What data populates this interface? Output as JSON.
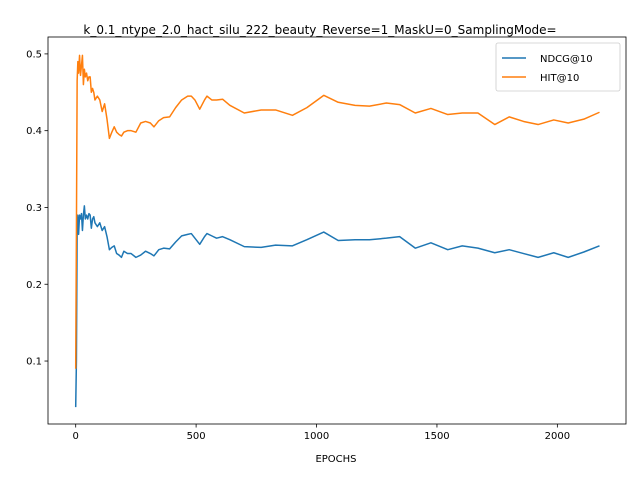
{
  "chart_data": {
    "type": "line",
    "title": "k_0.1_ntype_2.0_hact_silu_222_beauty_Reverse=1_MaskU=0_SamplingMode=",
    "xlabel": "EPOCHS",
    "ylabel": "",
    "xlim": [
      -115,
      2285
    ],
    "ylim": [
      0.018,
      0.522
    ],
    "xticks": [
      0,
      500,
      1000,
      1500,
      2000
    ],
    "yticks": [
      0.1,
      0.2,
      0.3,
      0.4,
      0.5
    ],
    "grid": false,
    "legend_position": "top-right",
    "series": [
      {
        "name": "NDCG@10",
        "color": "#1f77b4",
        "points": [
          [
            0,
            0.04
          ],
          [
            3,
            0.1
          ],
          [
            6,
            0.27
          ],
          [
            9,
            0.29
          ],
          [
            12,
            0.265
          ],
          [
            16,
            0.29
          ],
          [
            20,
            0.285
          ],
          [
            24,
            0.292
          ],
          [
            28,
            0.27
          ],
          [
            32,
            0.29
          ],
          [
            36,
            0.302
          ],
          [
            40,
            0.285
          ],
          [
            45,
            0.29
          ],
          [
            50,
            0.285
          ],
          [
            55,
            0.292
          ],
          [
            60,
            0.29
          ],
          [
            65,
            0.273
          ],
          [
            70,
            0.285
          ],
          [
            75,
            0.288
          ],
          [
            80,
            0.28
          ],
          [
            90,
            0.275
          ],
          [
            100,
            0.28
          ],
          [
            110,
            0.27
          ],
          [
            120,
            0.275
          ],
          [
            130,
            0.262
          ],
          [
            140,
            0.245
          ],
          [
            150,
            0.248
          ],
          [
            160,
            0.25
          ],
          [
            170,
            0.24
          ],
          [
            180,
            0.238
          ],
          [
            190,
            0.235
          ],
          [
            200,
            0.243
          ],
          [
            215,
            0.24
          ],
          [
            230,
            0.24
          ],
          [
            250,
            0.235
          ],
          [
            270,
            0.238
          ],
          [
            290,
            0.243
          ],
          [
            310,
            0.24
          ],
          [
            325,
            0.237
          ],
          [
            345,
            0.245
          ],
          [
            365,
            0.247
          ],
          [
            390,
            0.246
          ],
          [
            415,
            0.255
          ],
          [
            440,
            0.263
          ],
          [
            465,
            0.265
          ],
          [
            480,
            0.266
          ],
          [
            495,
            0.26
          ],
          [
            515,
            0.252
          ],
          [
            535,
            0.262
          ],
          [
            545,
            0.266
          ],
          [
            565,
            0.263
          ],
          [
            585,
            0.26
          ],
          [
            610,
            0.262
          ],
          [
            640,
            0.258
          ],
          [
            700,
            0.249
          ],
          [
            770,
            0.248
          ],
          [
            830,
            0.251
          ],
          [
            900,
            0.25
          ],
          [
            960,
            0.258
          ],
          [
            1030,
            0.268
          ],
          [
            1090,
            0.257
          ],
          [
            1160,
            0.258
          ],
          [
            1220,
            0.258
          ],
          [
            1290,
            0.26
          ],
          [
            1345,
            0.262
          ],
          [
            1410,
            0.247
          ],
          [
            1475,
            0.254
          ],
          [
            1545,
            0.245
          ],
          [
            1605,
            0.25
          ],
          [
            1670,
            0.247
          ],
          [
            1740,
            0.241
          ],
          [
            1800,
            0.245
          ],
          [
            1860,
            0.24
          ],
          [
            1920,
            0.235
          ],
          [
            1985,
            0.241
          ],
          [
            2045,
            0.235
          ],
          [
            2110,
            0.242
          ],
          [
            2175,
            0.25
          ]
        ]
      },
      {
        "name": "HIT@10",
        "color": "#ff7f0e",
        "points": [
          [
            0,
            0.09
          ],
          [
            3,
            0.27
          ],
          [
            6,
            0.465
          ],
          [
            9,
            0.49
          ],
          [
            12,
            0.475
          ],
          [
            16,
            0.498
          ],
          [
            20,
            0.472
          ],
          [
            24,
            0.485
          ],
          [
            28,
            0.498
          ],
          [
            32,
            0.46
          ],
          [
            36,
            0.48
          ],
          [
            40,
            0.47
          ],
          [
            45,
            0.475
          ],
          [
            50,
            0.465
          ],
          [
            55,
            0.47
          ],
          [
            60,
            0.47
          ],
          [
            65,
            0.45
          ],
          [
            70,
            0.455
          ],
          [
            75,
            0.45
          ],
          [
            80,
            0.44
          ],
          [
            90,
            0.445
          ],
          [
            100,
            0.44
          ],
          [
            110,
            0.425
          ],
          [
            120,
            0.435
          ],
          [
            130,
            0.415
          ],
          [
            140,
            0.39
          ],
          [
            150,
            0.398
          ],
          [
            160,
            0.405
          ],
          [
            170,
            0.398
          ],
          [
            180,
            0.395
          ],
          [
            190,
            0.393
          ],
          [
            200,
            0.398
          ],
          [
            215,
            0.4
          ],
          [
            230,
            0.4
          ],
          [
            250,
            0.398
          ],
          [
            270,
            0.41
          ],
          [
            290,
            0.412
          ],
          [
            310,
            0.41
          ],
          [
            325,
            0.405
          ],
          [
            345,
            0.413
          ],
          [
            365,
            0.417
          ],
          [
            390,
            0.418
          ],
          [
            415,
            0.43
          ],
          [
            440,
            0.44
          ],
          [
            465,
            0.445
          ],
          [
            480,
            0.445
          ],
          [
            495,
            0.44
          ],
          [
            515,
            0.428
          ],
          [
            535,
            0.44
          ],
          [
            545,
            0.445
          ],
          [
            565,
            0.44
          ],
          [
            585,
            0.44
          ],
          [
            610,
            0.441
          ],
          [
            640,
            0.433
          ],
          [
            700,
            0.423
          ],
          [
            770,
            0.427
          ],
          [
            830,
            0.427
          ],
          [
            900,
            0.42
          ],
          [
            960,
            0.43
          ],
          [
            1030,
            0.446
          ],
          [
            1090,
            0.437
          ],
          [
            1160,
            0.433
          ],
          [
            1220,
            0.432
          ],
          [
            1290,
            0.436
          ],
          [
            1345,
            0.434
          ],
          [
            1410,
            0.423
          ],
          [
            1475,
            0.429
          ],
          [
            1545,
            0.421
          ],
          [
            1605,
            0.423
          ],
          [
            1670,
            0.423
          ],
          [
            1740,
            0.408
          ],
          [
            1800,
            0.418
          ],
          [
            1860,
            0.412
          ],
          [
            1920,
            0.408
          ],
          [
            1985,
            0.414
          ],
          [
            2045,
            0.41
          ],
          [
            2110,
            0.415
          ],
          [
            2175,
            0.424
          ]
        ]
      }
    ]
  }
}
